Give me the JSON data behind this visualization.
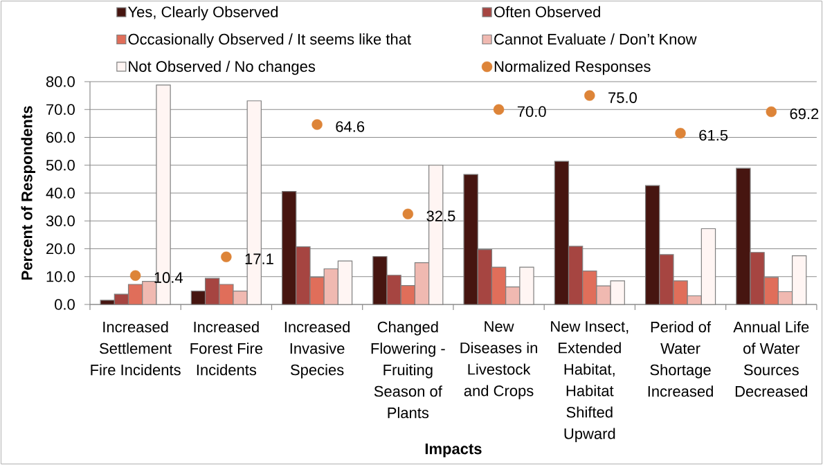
{
  "chart_data": {
    "type": "bar",
    "xlabel": "Impacts",
    "ylabel": "Percent of Respondents",
    "categories": [
      "Increased Settlement Fire Incidents",
      "Increased Forest Fire Incidents",
      "Increased Invasive Species",
      "Changed Flowering - Fruiting Season of Plants",
      "New Diseases in Livestock and Crops",
      "New Insect, Extended Habitat, Habitat Shifted Upward",
      "Period of Water Shortage Increased",
      "Annual Life of Water Sources Decreased"
    ],
    "series": [
      {
        "name": "Yes, Clearly Observed",
        "color": "#461510",
        "values": [
          1.5,
          4.8,
          40.6,
          17.2,
          46.7,
          51.4,
          42.7,
          48.9
        ]
      },
      {
        "name": "Often Observed",
        "color": "#a64541",
        "values": [
          3.7,
          9.4,
          20.7,
          10.5,
          19.7,
          20.9,
          17.9,
          18.7
        ]
      },
      {
        "name": "Occasionally Observed / It seems like that",
        "color": "#e06e5a",
        "values": [
          7.2,
          7.2,
          9.8,
          6.8,
          13.4,
          12.0,
          8.5,
          9.7
        ]
      },
      {
        "name": "Cannot Evaluate / Don’t Know",
        "color": "#f0b9b1",
        "values": [
          8.3,
          4.8,
          12.8,
          15.0,
          6.3,
          6.7,
          3.1,
          4.6
        ]
      },
      {
        "name": "Not Observed / No changes",
        "color": "#fff5f3",
        "values": [
          78.8,
          73.1,
          15.6,
          50.0,
          13.4,
          8.5,
          27.2,
          17.5
        ]
      },
      {
        "name": "Normalized Responses",
        "type": "scatter",
        "marker": "circle",
        "color": "#dd8438",
        "x": [
          "Increased Settlement Fire Incidents",
          "Increased Forest Fire Incidents",
          "Increased Invasive Species",
          "Changed Flowering - Fruiting Season of Plants",
          "New Diseases in Livestock and Crops",
          "New Insect, Extended Habitat, Habitat Shifted Upward",
          "Period of Water Shortage Increased",
          "Annual Life of Water Sources Decreased"
        ],
        "values": [
          10.4,
          17.1,
          64.6,
          32.5,
          70.0,
          75.0,
          61.5,
          69.2
        ],
        "value_labels": [
          "10.4",
          "17.1",
          "64.6",
          "32.5",
          "70.0",
          "75.0",
          "61.5",
          "69.2"
        ]
      }
    ],
    "ylim": [
      0,
      80
    ],
    "yticks": [
      {
        "value": 0,
        "label": "0.0"
      },
      {
        "value": 10,
        "label": "10.0"
      },
      {
        "value": 20,
        "label": "20.0"
      },
      {
        "value": 30,
        "label": "30.0"
      },
      {
        "value": 40,
        "label": "40.0"
      },
      {
        "value": 50,
        "label": "50.0"
      },
      {
        "value": 60,
        "label": "60.0"
      },
      {
        "value": 70,
        "label": "70.0"
      },
      {
        "value": 80,
        "label": "80.0"
      }
    ],
    "grid": "y",
    "legend": "top"
  }
}
